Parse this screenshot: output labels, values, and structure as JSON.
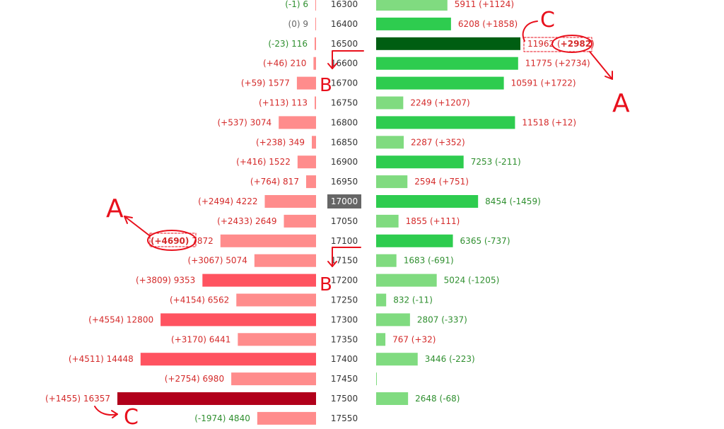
{
  "chart_data": {
    "type": "bar",
    "strikes": [
      "16300",
      "16400",
      "16500",
      "16600",
      "16700",
      "16750",
      "16800",
      "16850",
      "16900",
      "16950",
      "17000",
      "17050",
      "17100",
      "17150",
      "17200",
      "17250",
      "17300",
      "17350",
      "17400",
      "17450",
      "17500",
      "17550"
    ],
    "highlighted_strike": "17000",
    "series": [
      {
        "side": "left",
        "values": [
          6,
          9,
          116,
          210,
          1577,
          113,
          3074,
          349,
          1522,
          817,
          4222,
          2649,
          7872,
          5074,
          9353,
          6562,
          12800,
          6441,
          14448,
          6980,
          16357,
          4840
        ],
        "changes": [
          -1,
          0,
          -23,
          46,
          59,
          113,
          537,
          238,
          416,
          764,
          2494,
          2433,
          4690,
          3067,
          3809,
          4154,
          4554,
          3170,
          4511,
          2754,
          1455,
          -1974
        ],
        "labels": [
          "(-1) 6",
          "(0) 9",
          "(-23) 116",
          "(+46) 210",
          "(+59) 1577",
          "(+113) 113",
          "(+537) 3074",
          "(+238) 349",
          "(+416) 1522",
          "(+764) 817",
          "(+2494) 4222",
          "(+2433) 2649",
          "(+4690) 7872",
          "(+3067) 5074",
          "(+3809) 9353",
          "(+4154) 6562",
          "(+4554) 12800",
          "(+3170) 6441",
          "(+4511) 14448",
          "(+2754) 6980",
          "(+1455) 16357",
          "(-1974) 4840"
        ],
        "label_colors": [
          "green",
          "gray",
          "green",
          "red",
          "red",
          "red",
          "red",
          "red",
          "red",
          "red",
          "red",
          "red",
          "red",
          "red",
          "red",
          "red",
          "red",
          "red",
          "red",
          "red",
          "red",
          "green"
        ],
        "bar_shades": [
          "light",
          "light",
          "light",
          "light",
          "light",
          "light",
          "light",
          "light",
          "light",
          "light",
          "light",
          "light",
          "light",
          "light",
          "mid",
          "light",
          "mid",
          "light",
          "mid",
          "light",
          "dark",
          "light"
        ]
      },
      {
        "side": "right",
        "values": [
          5911,
          6208,
          11962,
          11775,
          10591,
          2249,
          11518,
          2287,
          7253,
          2594,
          8454,
          1855,
          6365,
          1683,
          5024,
          832,
          2807,
          767,
          3446,
          12,
          2648,
          null
        ],
        "changes": [
          1124,
          1858,
          2982,
          2734,
          1722,
          1207,
          12,
          352,
          -211,
          751,
          -1459,
          111,
          -737,
          -691,
          -1205,
          -11,
          -337,
          32,
          -223,
          null,
          -68,
          null
        ],
        "labels": [
          "5911 (+1124)",
          "6208 (+1858)",
          "11962 (+2982)",
          "11775 (+2734)",
          "10591 (+1722)",
          "2249 (+1207)",
          "11518 (+12)",
          "2287 (+352)",
          "7253 (-211)",
          "2594 (+751)",
          "8454 (-1459)",
          "1855 (+111)",
          "6365 (-737)",
          "1683 (-691)",
          "5024 (-1205)",
          "832 (-11)",
          "2807 (-337)",
          "767 (+32)",
          "3446 (-223)",
          "",
          "2648 (-68)",
          ""
        ],
        "label_colors": [
          "red",
          "red",
          "red",
          "red",
          "red",
          "red",
          "red",
          "red",
          "green",
          "red",
          "green",
          "red",
          "green",
          "green",
          "green",
          "green",
          "green",
          "red",
          "green",
          "green",
          "green",
          "green"
        ],
        "bar_shades": [
          "light",
          "mid",
          "dark",
          "mid",
          "mid",
          "light",
          "mid",
          "light",
          "mid",
          "light",
          "mid",
          "light",
          "mid",
          "light",
          "light",
          "light",
          "light",
          "light",
          "light",
          "light",
          "light",
          "none"
        ]
      }
    ],
    "colors": {
      "left_light": "#ff8c8c",
      "left_mid": "#ff5360",
      "left_dark": "#b1001b",
      "right_light": "#80db80",
      "right_mid": "#2ecc4f",
      "right_dark": "#005e12",
      "label_red": "#d42a2a",
      "label_green": "#2f8f2f",
      "label_gray": "#666666",
      "strike_text": "#333333",
      "highlight_bg": "#666666",
      "highlight_text": "#ffffff",
      "annotation": "#e8101c"
    }
  },
  "annotations": {
    "letter_a": "A",
    "letter_b": "B",
    "letter_c": "C",
    "left_bold_text": "(+4690)",
    "right_bold_text": "+2982"
  }
}
